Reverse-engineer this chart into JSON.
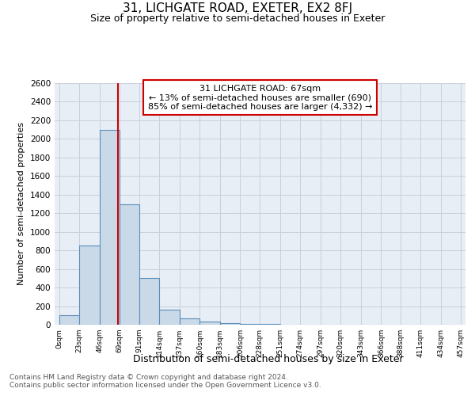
{
  "title": "31, LICHGATE ROAD, EXETER, EX2 8FJ",
  "subtitle": "Size of property relative to semi-detached houses in Exeter",
  "xlabel": "Distribution of semi-detached houses by size in Exeter",
  "ylabel": "Number of semi-detached properties",
  "annotation_line1": "31 LICHGATE ROAD: 67sqm",
  "annotation_line2": "← 13% of semi-detached houses are smaller (690)",
  "annotation_line3": "85% of semi-detached houses are larger (4,332) →",
  "footnote1": "Contains HM Land Registry data © Crown copyright and database right 2024.",
  "footnote2": "Contains public sector information licensed under the Open Government Licence v3.0.",
  "bar_left_edges": [
    0,
    23,
    46,
    69,
    91,
    114,
    137,
    160,
    183,
    206,
    228,
    251,
    274,
    297,
    320,
    343,
    366,
    388,
    411,
    434
  ],
  "bar_widths": [
    23,
    23,
    23,
    22,
    23,
    23,
    23,
    23,
    23,
    22,
    23,
    23,
    23,
    23,
    23,
    23,
    22,
    23,
    23,
    23
  ],
  "bar_heights": [
    100,
    850,
    2100,
    1300,
    500,
    160,
    70,
    30,
    20,
    10,
    5,
    3,
    2,
    2,
    1,
    1,
    1,
    1,
    1,
    1
  ],
  "bar_color": "#c9d9e8",
  "bar_edge_color": "#5b8db8",
  "bar_edge_width": 0.8,
  "vline_x": 67,
  "vline_color": "#cc0000",
  "vline_linewidth": 1.5,
  "annotation_box_color": "#cc0000",
  "annotation_box_facecolor": "white",
  "xtick_labels": [
    "0sqm",
    "23sqm",
    "46sqm",
    "69sqm",
    "91sqm",
    "114sqm",
    "137sqm",
    "160sqm",
    "183sqm",
    "206sqm",
    "228sqm",
    "251sqm",
    "274sqm",
    "297sqm",
    "320sqm",
    "343sqm",
    "366sqm",
    "388sqm",
    "411sqm",
    "434sqm",
    "457sqm"
  ],
  "ylim": [
    0,
    2600
  ],
  "ytick_values": [
    0,
    200,
    400,
    600,
    800,
    1000,
    1200,
    1400,
    1600,
    1800,
    2000,
    2200,
    2400,
    2600
  ],
  "grid_color": "#c8d0dc",
  "background_color": "#e8eef5",
  "title_fontsize": 11,
  "subtitle_fontsize": 9,
  "xlabel_fontsize": 9,
  "ylabel_fontsize": 8,
  "footnote_fontsize": 6.5,
  "annotation_fontsize": 8
}
